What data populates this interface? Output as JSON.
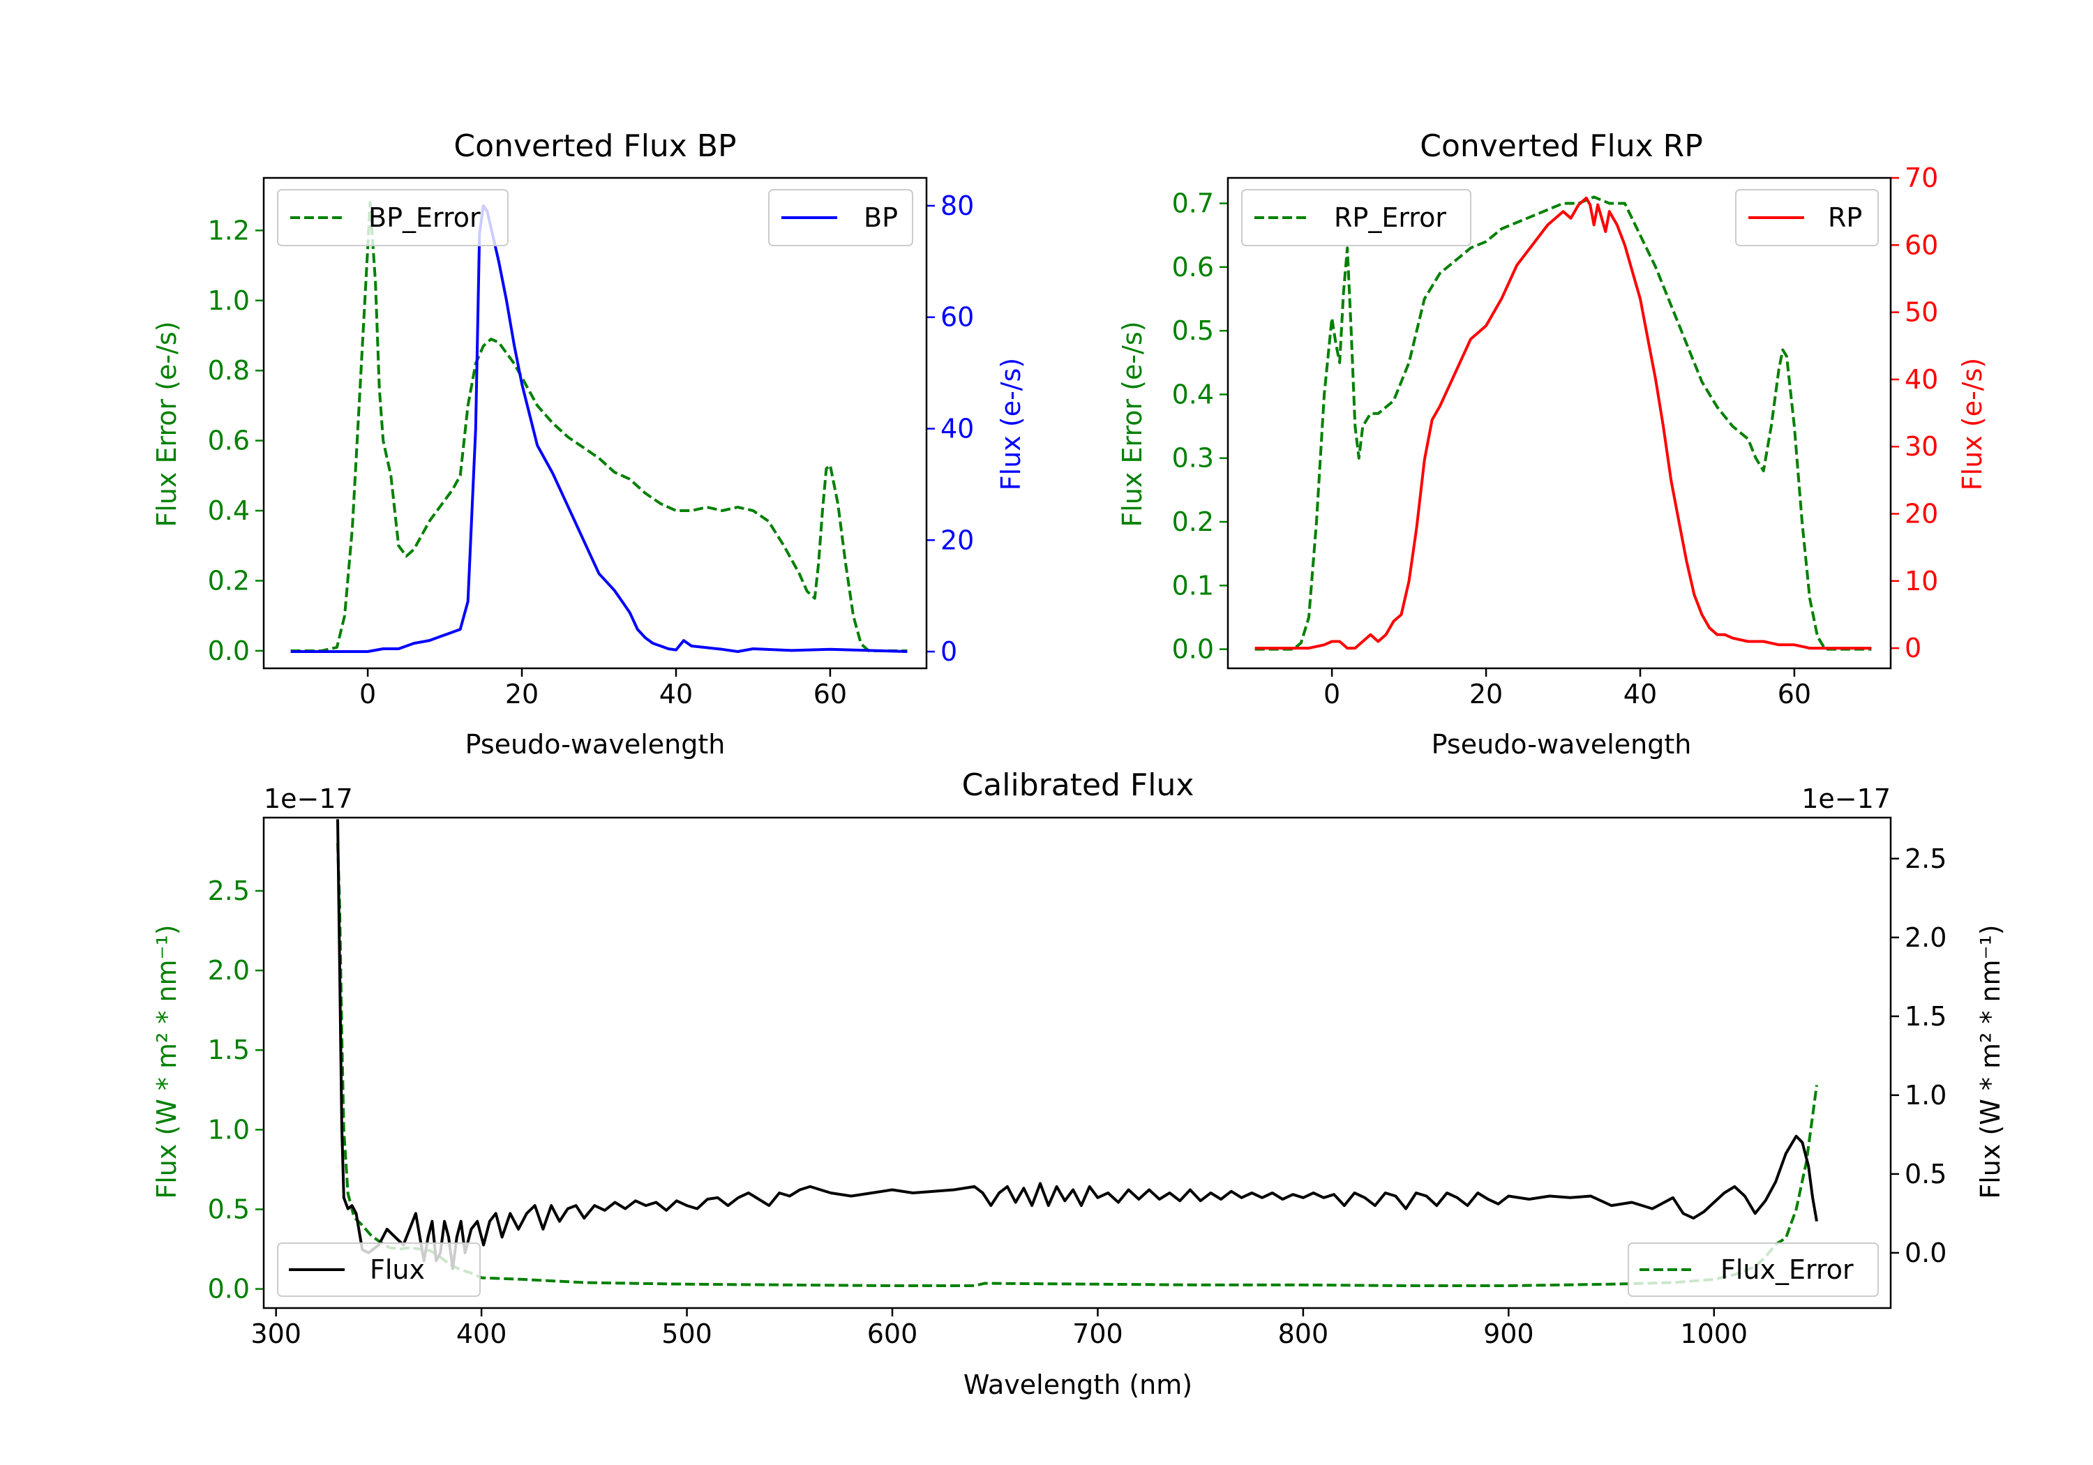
{
  "colors": {
    "bp": "#0000ff",
    "rp": "#ff0000",
    "err": "#008000",
    "flux": "#000000",
    "axis": "#000000"
  },
  "chart_data": [
    {
      "id": "bp",
      "type": "line",
      "title": "Converted Flux BP",
      "xlabel": "Pseudo-wavelength",
      "ylabel_left": "Flux Error (e-/s)",
      "ylabel_right": "Flux (e-/s)",
      "xlim": [
        -13.5,
        72.5
      ],
      "ylim_left": [
        -0.05,
        1.35
      ],
      "ylim_right": [
        -3,
        85
      ],
      "xticks": [
        0,
        20,
        40,
        60
      ],
      "yticks_left": [
        0.0,
        0.2,
        0.4,
        0.6,
        0.8,
        1.0,
        1.2
      ],
      "yticks_right": [
        0,
        20,
        40,
        60,
        80
      ],
      "ytick_format_left": 1,
      "ytick_format_right": 0,
      "left_color": "#008000",
      "right_color": "#0000ff",
      "legend_left": {
        "label": "BP_Error",
        "position": "upper-left"
      },
      "legend_right": {
        "label": "BP",
        "position": "upper-right"
      },
      "series_error": {
        "name": "BP_Error",
        "x": [
          -10,
          -6,
          -4,
          -3,
          -2,
          -1,
          0,
          0.3,
          1,
          1.5,
          2,
          2.5,
          3,
          3.5,
          4,
          5,
          6,
          7,
          8,
          9,
          10,
          11,
          12,
          13,
          14,
          15,
          16,
          17,
          18,
          19,
          20,
          22,
          24,
          26,
          28,
          30,
          32,
          34,
          36,
          38,
          40,
          42,
          44,
          46,
          48,
          50,
          52,
          54,
          56,
          57,
          58,
          58.5,
          59,
          59.5,
          60,
          61,
          62,
          63,
          64,
          65,
          66,
          70
        ],
        "y": [
          0.0,
          0.0,
          0.01,
          0.1,
          0.35,
          0.75,
          1.15,
          1.28,
          1.05,
          0.75,
          0.6,
          0.55,
          0.5,
          0.4,
          0.3,
          0.27,
          0.29,
          0.33,
          0.37,
          0.4,
          0.43,
          0.46,
          0.5,
          0.7,
          0.82,
          0.87,
          0.89,
          0.88,
          0.85,
          0.82,
          0.78,
          0.7,
          0.65,
          0.61,
          0.58,
          0.55,
          0.51,
          0.49,
          0.45,
          0.42,
          0.4,
          0.4,
          0.41,
          0.4,
          0.41,
          0.4,
          0.37,
          0.3,
          0.22,
          0.17,
          0.15,
          0.25,
          0.4,
          0.52,
          0.53,
          0.42,
          0.25,
          0.1,
          0.02,
          0.0,
          0.0,
          0.0
        ]
      },
      "series_flux": {
        "name": "BP",
        "x": [
          -10,
          -5,
          0,
          2,
          4,
          6,
          8,
          10,
          12,
          13,
          14,
          14.5,
          15,
          15.5,
          16,
          17,
          18,
          19,
          20,
          22,
          24,
          26,
          28,
          30,
          32,
          33,
          34,
          35,
          36,
          37,
          38,
          39,
          40,
          41,
          42,
          44,
          46,
          48,
          50,
          55,
          60,
          65,
          70
        ],
        "y": [
          0,
          0,
          0,
          0.5,
          0.5,
          1.5,
          2,
          3,
          4,
          9,
          40,
          75,
          80,
          79,
          76,
          70,
          63,
          55,
          48,
          37,
          32,
          26,
          20,
          14,
          11,
          9,
          7,
          4,
          2.5,
          1.5,
          1,
          0.5,
          0.3,
          2,
          1,
          0.7,
          0.4,
          0,
          0.5,
          0.2,
          0.4,
          0.2,
          0
        ]
      }
    },
    {
      "id": "rp",
      "type": "line",
      "title": "Converted Flux RP",
      "xlabel": "Pseudo-wavelength",
      "ylabel_left": "Flux Error (e-/s)",
      "ylabel_right": "Flux (e-/s)",
      "xlim": [
        -13.5,
        72.5
      ],
      "ylim_left": [
        -0.03,
        0.74
      ],
      "ylim_right": [
        -3,
        70
      ],
      "xticks": [
        0,
        20,
        40,
        60
      ],
      "yticks_left": [
        0.0,
        0.1,
        0.2,
        0.3,
        0.4,
        0.5,
        0.6,
        0.7
      ],
      "yticks_right": [
        0,
        10,
        20,
        30,
        40,
        50,
        60,
        70
      ],
      "ytick_format_left": 1,
      "ytick_format_right": 0,
      "left_color": "#008000",
      "right_color": "#ff0000",
      "legend_left": {
        "label": "RP_Error",
        "position": "upper-left"
      },
      "legend_right": {
        "label": "RP",
        "position": "upper-right"
      },
      "series_error": {
        "name": "RP_Error",
        "x": [
          -10,
          -5,
          -4,
          -3,
          -2,
          -1,
          0,
          0.5,
          1,
          1.5,
          2,
          2.5,
          3,
          3.5,
          4,
          5,
          6,
          8,
          10,
          12,
          14,
          16,
          18,
          20,
          22,
          24,
          26,
          28,
          30,
          32,
          34,
          36,
          38,
          40,
          42,
          44,
          46,
          48,
          50,
          52,
          54,
          55,
          56,
          57,
          58,
          58.5,
          59,
          60,
          61,
          62,
          63,
          64,
          65,
          70
        ],
        "y": [
          0.0,
          0.0,
          0.01,
          0.05,
          0.2,
          0.4,
          0.52,
          0.48,
          0.45,
          0.56,
          0.63,
          0.5,
          0.35,
          0.3,
          0.35,
          0.37,
          0.37,
          0.39,
          0.45,
          0.55,
          0.59,
          0.61,
          0.63,
          0.64,
          0.66,
          0.67,
          0.68,
          0.69,
          0.7,
          0.7,
          0.71,
          0.7,
          0.7,
          0.65,
          0.6,
          0.54,
          0.48,
          0.42,
          0.38,
          0.35,
          0.33,
          0.3,
          0.28,
          0.35,
          0.44,
          0.47,
          0.46,
          0.35,
          0.2,
          0.08,
          0.02,
          0.0,
          0.0,
          0.0
        ]
      },
      "series_flux": {
        "name": "RP",
        "x": [
          -10,
          -3,
          -1,
          0,
          1,
          2,
          3,
          4,
          5,
          6,
          7,
          8,
          9,
          10,
          11,
          12,
          13,
          14,
          16,
          18,
          20,
          22,
          24,
          26,
          28,
          30,
          31,
          32,
          33,
          33.5,
          34,
          34.5,
          35,
          35.5,
          36,
          37,
          38,
          39,
          40,
          41,
          42,
          43,
          44,
          45,
          46,
          47,
          48,
          49,
          50,
          51,
          52,
          54,
          56,
          58,
          60,
          62,
          65,
          70
        ],
        "y": [
          0,
          0,
          0.5,
          1,
          1,
          0,
          0,
          1,
          2,
          1,
          2,
          4,
          5,
          10,
          18,
          28,
          34,
          36,
          41,
          46,
          48,
          52,
          57,
          60,
          63,
          65,
          64,
          66,
          67,
          66,
          63,
          66,
          64,
          62,
          65,
          63,
          60,
          56,
          52,
          46,
          40,
          33,
          25,
          19,
          13,
          8,
          5,
          3,
          2,
          2,
          1.5,
          1,
          1,
          0.5,
          0.5,
          0,
          0,
          0
        ]
      }
    },
    {
      "id": "cal",
      "type": "line",
      "title": "Calibrated Flux",
      "xlabel": "Wavelength (nm)",
      "ylabel_left": "Flux (W * m² * nm⁻¹)",
      "ylabel_right": "Flux (W * m² * nm⁻¹)",
      "offset_label_left": "1e−17",
      "offset_label_right": "1e−17",
      "xlim": [
        294,
        1086
      ],
      "ylim_left": [
        -0.12,
        2.96
      ],
      "ylim_right": [
        -0.35,
        2.76
      ],
      "xticks": [
        300,
        400,
        500,
        600,
        700,
        800,
        900,
        1000
      ],
      "yticks_left": [
        0.0,
        0.5,
        1.0,
        1.5,
        2.0,
        2.5
      ],
      "yticks_right": [
        0.0,
        0.5,
        1.0,
        1.5,
        2.0,
        2.5
      ],
      "ytick_format_left": 1,
      "ytick_format_right": 1,
      "left_color": "#008000",
      "right_color": "#000000",
      "legend_left": {
        "label": "Flux",
        "position": "lower-left"
      },
      "legend_right": {
        "label": "Flux_Error",
        "position": "lower-right"
      },
      "series_error": {
        "name": "Flux_Error",
        "x": [
          330,
          331,
          332,
          333,
          335,
          338,
          342,
          346,
          350,
          355,
          360,
          365,
          370,
          375,
          380,
          385,
          390,
          395,
          400,
          420,
          450,
          500,
          550,
          600,
          640,
          645,
          700,
          750,
          800,
          850,
          900,
          950,
          980,
          1000,
          1010,
          1020,
          1025,
          1030,
          1035,
          1040,
          1045,
          1050
        ],
        "y": [
          2.8,
          2.4,
          1.6,
          1.0,
          0.6,
          0.45,
          0.4,
          0.34,
          0.3,
          0.26,
          0.25,
          0.26,
          0.25,
          0.24,
          0.2,
          0.15,
          0.12,
          0.1,
          0.07,
          0.06,
          0.04,
          0.03,
          0.025,
          0.02,
          0.02,
          0.035,
          0.03,
          0.025,
          0.025,
          0.02,
          0.02,
          0.03,
          0.04,
          0.06,
          0.09,
          0.14,
          0.2,
          0.28,
          0.32,
          0.5,
          0.8,
          1.28
        ]
      },
      "series_flux": {
        "name": "Flux",
        "x": [
          330,
          331,
          332,
          333,
          335,
          337,
          339,
          342,
          345,
          350,
          354,
          358,
          362,
          365,
          368,
          370,
          372,
          374,
          376,
          378,
          380,
          382,
          384,
          386,
          388,
          390,
          392,
          395,
          398,
          401,
          404,
          407,
          410,
          414,
          418,
          422,
          426,
          430,
          434,
          438,
          442,
          446,
          450,
          455,
          460,
          465,
          470,
          475,
          480,
          485,
          490,
          495,
          500,
          505,
          510,
          515,
          520,
          525,
          530,
          535,
          540,
          545,
          550,
          555,
          560,
          570,
          580,
          590,
          600,
          610,
          620,
          630,
          640,
          644,
          648,
          652,
          656,
          660,
          664,
          668,
          672,
          676,
          680,
          684,
          688,
          692,
          696,
          700,
          705,
          710,
          715,
          720,
          725,
          730,
          735,
          740,
          745,
          750,
          755,
          760,
          765,
          770,
          775,
          780,
          785,
          790,
          795,
          800,
          805,
          810,
          815,
          820,
          825,
          830,
          835,
          840,
          845,
          850,
          855,
          860,
          865,
          870,
          875,
          880,
          885,
          890,
          895,
          900,
          910,
          920,
          930,
          940,
          950,
          960,
          970,
          980,
          985,
          990,
          995,
          1000,
          1005,
          1010,
          1015,
          1020,
          1025,
          1030,
          1035,
          1040,
          1043,
          1046,
          1048,
          1050
        ],
        "y": [
          2.75,
          1.8,
          0.8,
          0.35,
          0.28,
          0.3,
          0.25,
          0.02,
          0.0,
          0.05,
          0.15,
          0.1,
          0.05,
          0.15,
          0.25,
          0.1,
          -0.05,
          0.1,
          0.2,
          -0.05,
          0.0,
          0.2,
          0.1,
          -0.1,
          0.1,
          0.2,
          0.0,
          0.15,
          0.2,
          0.05,
          0.2,
          0.25,
          0.1,
          0.25,
          0.15,
          0.25,
          0.3,
          0.15,
          0.3,
          0.2,
          0.28,
          0.3,
          0.22,
          0.3,
          0.27,
          0.32,
          0.28,
          0.33,
          0.3,
          0.32,
          0.27,
          0.33,
          0.3,
          0.28,
          0.34,
          0.35,
          0.3,
          0.35,
          0.38,
          0.34,
          0.3,
          0.38,
          0.36,
          0.4,
          0.42,
          0.38,
          0.36,
          0.38,
          0.4,
          0.38,
          0.39,
          0.4,
          0.42,
          0.38,
          0.3,
          0.38,
          0.42,
          0.32,
          0.41,
          0.3,
          0.44,
          0.3,
          0.42,
          0.33,
          0.4,
          0.3,
          0.42,
          0.35,
          0.38,
          0.32,
          0.4,
          0.34,
          0.4,
          0.34,
          0.38,
          0.33,
          0.4,
          0.33,
          0.38,
          0.34,
          0.39,
          0.35,
          0.38,
          0.35,
          0.38,
          0.34,
          0.37,
          0.35,
          0.38,
          0.35,
          0.37,
          0.3,
          0.38,
          0.35,
          0.3,
          0.38,
          0.36,
          0.28,
          0.38,
          0.36,
          0.3,
          0.38,
          0.35,
          0.3,
          0.38,
          0.34,
          0.31,
          0.36,
          0.34,
          0.36,
          0.35,
          0.36,
          0.3,
          0.32,
          0.28,
          0.35,
          0.25,
          0.22,
          0.26,
          0.32,
          0.38,
          0.42,
          0.36,
          0.25,
          0.33,
          0.45,
          0.63,
          0.74,
          0.7,
          0.55,
          0.35,
          0.2
        ]
      }
    }
  ]
}
